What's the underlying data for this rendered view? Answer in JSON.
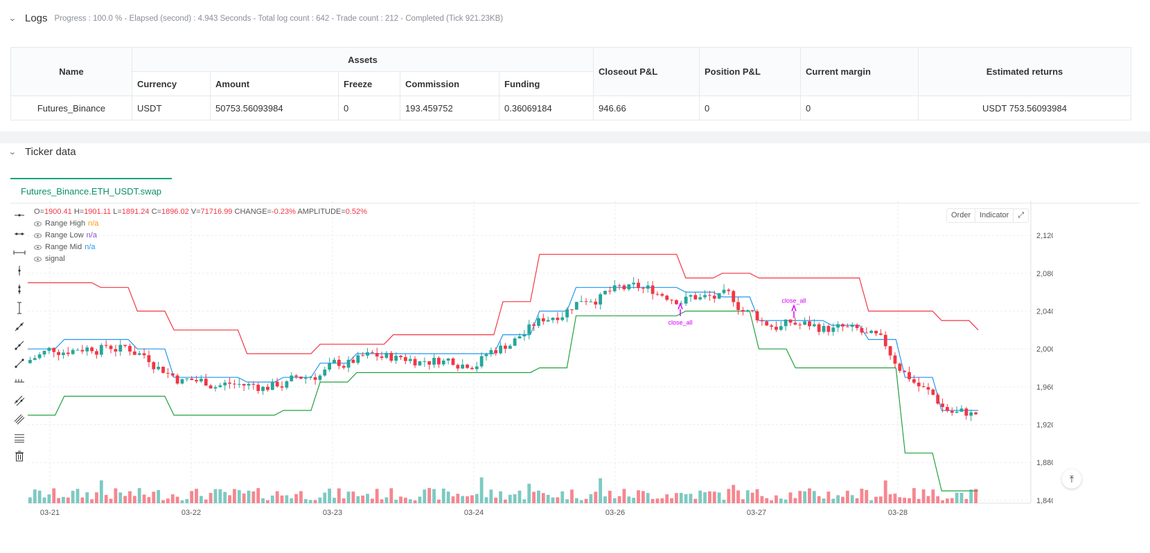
{
  "logs": {
    "title": "Logs",
    "summary": "Progress : 100.0 % - Elapsed (second) : 4.943  Seconds - Total log count : 642 - Trade count : 212 - Completed (Tick 921.23KB)"
  },
  "assets_table": {
    "group_header": "Assets",
    "headers": [
      "Name",
      "Currency",
      "Amount",
      "Freeze",
      "Commission",
      "Funding",
      "Closeout P&L",
      "Position P&L",
      "Current margin",
      "Estimated returns"
    ],
    "row": [
      "Futures_Binance",
      "USDT",
      "50753.56093984",
      "0",
      "193.459752",
      "0.36069184",
      "946.66",
      "0",
      "0",
      "USDT 753.56093984"
    ]
  },
  "ticker": {
    "title": "Ticker data",
    "tab_label": "Futures_Binance.ETH_USDT.swap"
  },
  "ohlc": {
    "o_label": "O=",
    "o": "1900.41",
    "h_label": "H=",
    "h": "1901.11",
    "l_label": "L=",
    "l": "1891.24",
    "c_label": "C=",
    "c": "1896.02",
    "v_label": "V=",
    "v": "71716.99",
    "change_label": "CHANGE=",
    "change": "-0.23%",
    "amp_label": "AMPLITUDE=",
    "amp": "0.52%"
  },
  "legend": [
    {
      "name": "Range High",
      "value": "n/a",
      "color": "#ff9800"
    },
    {
      "name": "Range Low",
      "value": "n/a",
      "color": "#7e57c2"
    },
    {
      "name": "Range Mid",
      "value": "n/a",
      "color": "#2196f3"
    },
    {
      "name": "signal",
      "value": "",
      "color": "#555555"
    }
  ],
  "chart_buttons": {
    "order": "Order",
    "indicator": "Indicator"
  },
  "colors": {
    "up": "#26a69a",
    "down": "#f23645",
    "high_line": "#f23645",
    "low_line": "#22a03b",
    "mid_line": "#2196f3",
    "signal": "#d500f9",
    "accent": "#0ea47a"
  },
  "chart_data": {
    "type": "candlestick",
    "y_ticks": [
      "2,120.00",
      "2,080.00",
      "2,040.00",
      "2,000.00",
      "1,960.00",
      "1,920.00",
      "1,880.00",
      "1,840.00"
    ],
    "x_ticks": [
      "03-21",
      "03-22",
      "03-23",
      "03-24",
      "03-26",
      "03-27",
      "03-28"
    ],
    "ylim": [
      1837,
      2153
    ],
    "annotations": [
      "close_all",
      "close_all"
    ],
    "series": [
      {
        "name": "Range High",
        "values": [
          2070,
          2070,
          2065,
          2040,
          2020,
          2020,
          1995,
          1995,
          2005,
          2005,
          2015,
          2015,
          2015,
          2050,
          2100,
          2100,
          2100,
          2100,
          2075,
          2080,
          2075,
          2075,
          2075,
          2040,
          2040,
          2030,
          2020
        ]
      },
      {
        "name": "Range Low",
        "values": [
          1930,
          1950,
          1950,
          1950,
          1930,
          1930,
          1930,
          1935,
          1965,
          1975,
          1975,
          1975,
          1975,
          1975,
          1980,
          2035,
          2035,
          2035,
          2040,
          2040,
          2000,
          1980,
          1980,
          1980,
          1890,
          1850,
          1850
        ]
      },
      {
        "name": "Range Mid",
        "values": [
          2000,
          2010,
          2010,
          2000,
          1970,
          1970,
          1965,
          1970,
          1985,
          1995,
          1995,
          1995,
          1995,
          2015,
          2040,
          2065,
          2065,
          2065,
          2060,
          2055,
          2030,
          2030,
          2025,
          2010,
          1970,
          1935,
          1935
        ]
      }
    ]
  }
}
